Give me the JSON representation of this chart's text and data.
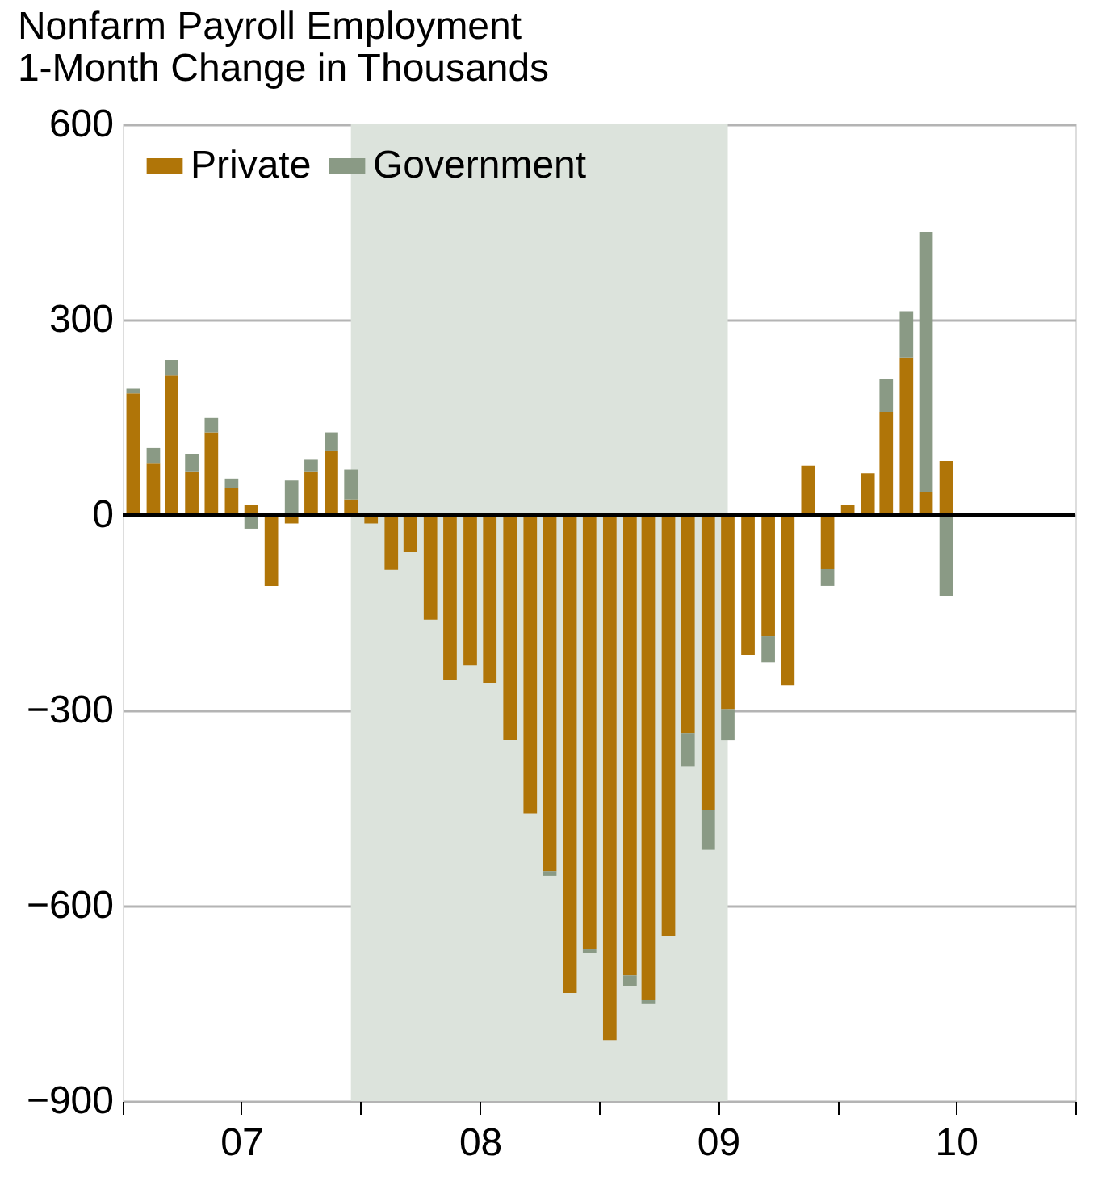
{
  "chart_data": {
    "type": "bar",
    "title": "Nonfarm Payroll Employment",
    "subtitle": "1-Month Change in Thousands",
    "x": [
      "2007-01",
      "2007-02",
      "2007-03",
      "2007-04",
      "2007-05",
      "2007-06",
      "2007-07",
      "2007-08",
      "2007-09",
      "2007-10",
      "2007-11",
      "2007-12",
      "2008-01",
      "2008-02",
      "2008-03",
      "2008-04",
      "2008-05",
      "2008-06",
      "2008-07",
      "2008-08",
      "2008-09",
      "2008-10",
      "2008-11",
      "2008-12",
      "2009-01",
      "2009-02",
      "2009-03",
      "2009-04",
      "2009-05",
      "2009-06",
      "2009-07",
      "2009-08",
      "2009-09",
      "2009-10",
      "2009-11",
      "2009-12",
      "2010-01",
      "2010-02",
      "2010-03",
      "2010-04",
      "2010-05",
      "2010-06"
    ],
    "series": [
      {
        "name": "Private",
        "color": "#b07508",
        "values": [
          187,
          79,
          214,
          66,
          127,
          41,
          16,
          -109,
          -13,
          66,
          98,
          24,
          -13,
          -84,
          -57,
          -161,
          -253,
          -231,
          -258,
          -346,
          -458,
          -547,
          -734,
          -667,
          -806,
          -707,
          -745,
          -647,
          -335,
          -453,
          -298,
          -215,
          -186,
          -262,
          76,
          -83,
          16,
          64,
          158,
          242,
          35,
          83
        ]
      },
      {
        "name": "Government",
        "color": "#8a9a85",
        "values": [
          7,
          24,
          24,
          27,
          22,
          15,
          -21,
          0,
          53,
          19,
          29,
          46,
          0,
          0,
          0,
          0,
          0,
          0,
          0,
          0,
          0,
          -7,
          0,
          -5,
          0,
          -17,
          -6,
          0,
          -51,
          -61,
          -48,
          0,
          -40,
          0,
          0,
          -26,
          0,
          0,
          51,
          71,
          399,
          -124
        ]
      }
    ],
    "stacked": true,
    "xlim": [
      "2006-12-16",
      "2010-12-16"
    ],
    "xticks": [
      {
        "value": "2006-12-16",
        "label": null
      },
      {
        "value": "2007-06-16",
        "label": "07"
      },
      {
        "value": "2007-12-16",
        "label": null
      },
      {
        "value": "2008-06-16",
        "label": "08"
      },
      {
        "value": "2008-12-16",
        "label": null
      },
      {
        "value": "2009-06-16",
        "label": "09"
      },
      {
        "value": "2009-12-16",
        "label": null
      },
      {
        "value": "2010-06-16",
        "label": "10"
      },
      {
        "value": "2010-12-16",
        "label": null
      }
    ],
    "ylim": [
      -900,
      600
    ],
    "yticks": [
      -900,
      -600,
      -300,
      0,
      300,
      600
    ],
    "grid": "y",
    "legend": "top left",
    "bands": [
      {
        "axis": "x",
        "from": "2007-12",
        "to": "2009-07",
        "color": "#dce3dc"
      }
    ],
    "ref_lines": [
      {
        "axis": "y",
        "value": 0,
        "color": "#000000"
      }
    ]
  }
}
